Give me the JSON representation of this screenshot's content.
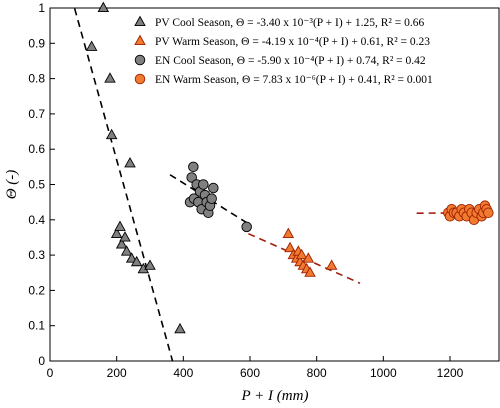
{
  "chart_data": {
    "type": "scatter",
    "title": "",
    "xlabel": "P + I (mm)",
    "ylabel": "Θ (-)",
    "xlim": [
      0,
      1350
    ],
    "ylim": [
      0,
      1
    ],
    "x_ticks": [
      0,
      200,
      400,
      600,
      800,
      1000,
      1200
    ],
    "y_ticks": [
      0,
      0.1,
      0.2,
      0.3,
      0.4,
      0.5,
      0.6,
      0.7,
      0.8,
      0.9,
      1
    ],
    "grid": false,
    "legend_position": "top-right",
    "series": [
      {
        "name": "PV Cool Season, Θ = -3.40 x 10⁻³(P + I) + 1.25, R² = 0.66",
        "marker": "triangle",
        "color": "#808080",
        "edge": "#000000",
        "points": [
          [
            160,
            1.0
          ],
          [
            125,
            0.89
          ],
          [
            180,
            0.8
          ],
          [
            185,
            0.64
          ],
          [
            240,
            0.56
          ],
          [
            200,
            0.36
          ],
          [
            210,
            0.38
          ],
          [
            215,
            0.33
          ],
          [
            225,
            0.35
          ],
          [
            230,
            0.31
          ],
          [
            245,
            0.29
          ],
          [
            260,
            0.28
          ],
          [
            280,
            0.26
          ],
          [
            300,
            0.27
          ],
          [
            390,
            0.09
          ]
        ],
        "fit": {
          "slope": -0.0034,
          "intercept": 1.25,
          "x_range": [
            74,
            368
          ],
          "color": "#000000"
        }
      },
      {
        "name": "PV Warm Season, Θ = -4.19 x 10⁻⁴(P + I) + 0.61, R² = 0.23",
        "marker": "triangle",
        "color": "#f07a30",
        "edge": "#a02000",
        "points": [
          [
            715,
            0.36
          ],
          [
            720,
            0.32
          ],
          [
            730,
            0.3
          ],
          [
            740,
            0.29
          ],
          [
            745,
            0.31
          ],
          [
            750,
            0.28
          ],
          [
            755,
            0.3
          ],
          [
            760,
            0.27
          ],
          [
            770,
            0.26
          ],
          [
            775,
            0.29
          ],
          [
            780,
            0.25
          ],
          [
            845,
            0.27
          ]
        ],
        "fit": {
          "slope": -0.000419,
          "intercept": 0.61,
          "x_range": [
            595,
            930
          ],
          "color": "#a02010"
        }
      },
      {
        "name": "EN Cool Season, Θ = -5.90 x 10⁻⁴(P + I) + 0.74, R² = 0.42",
        "marker": "circle",
        "color": "#808080",
        "edge": "#000000",
        "points": [
          [
            420,
            0.45
          ],
          [
            425,
            0.52
          ],
          [
            430,
            0.55
          ],
          [
            432,
            0.46
          ],
          [
            440,
            0.5
          ],
          [
            445,
            0.45
          ],
          [
            450,
            0.48
          ],
          [
            455,
            0.43
          ],
          [
            460,
            0.5
          ],
          [
            465,
            0.47
          ],
          [
            470,
            0.45
          ],
          [
            475,
            0.42
          ],
          [
            480,
            0.44
          ],
          [
            485,
            0.46
          ],
          [
            490,
            0.49
          ],
          [
            590,
            0.38
          ]
        ],
        "fit": {
          "slope": -0.00059,
          "intercept": 0.74,
          "x_range": [
            360,
            595
          ],
          "color": "#000000"
        }
      },
      {
        "name": "EN Warm Season, Θ = 7.83 x 10⁻⁶(P + I) + 0.41, R² = 0.001",
        "marker": "circle",
        "color": "#f07a30",
        "edge": "#a02000",
        "points": [
          [
            1195,
            0.42
          ],
          [
            1200,
            0.41
          ],
          [
            1205,
            0.43
          ],
          [
            1212,
            0.42
          ],
          [
            1220,
            0.42
          ],
          [
            1228,
            0.41
          ],
          [
            1235,
            0.43
          ],
          [
            1242,
            0.42
          ],
          [
            1250,
            0.41
          ],
          [
            1258,
            0.43
          ],
          [
            1265,
            0.42
          ],
          [
            1272,
            0.4
          ],
          [
            1280,
            0.42
          ],
          [
            1288,
            0.43
          ],
          [
            1295,
            0.41
          ],
          [
            1300,
            0.42
          ],
          [
            1305,
            0.44
          ],
          [
            1310,
            0.43
          ],
          [
            1315,
            0.42
          ]
        ],
        "fit": {
          "slope": 7.83e-06,
          "intercept": 0.41,
          "x_range": [
            1100,
            1330
          ],
          "color": "#a02010"
        }
      }
    ]
  }
}
